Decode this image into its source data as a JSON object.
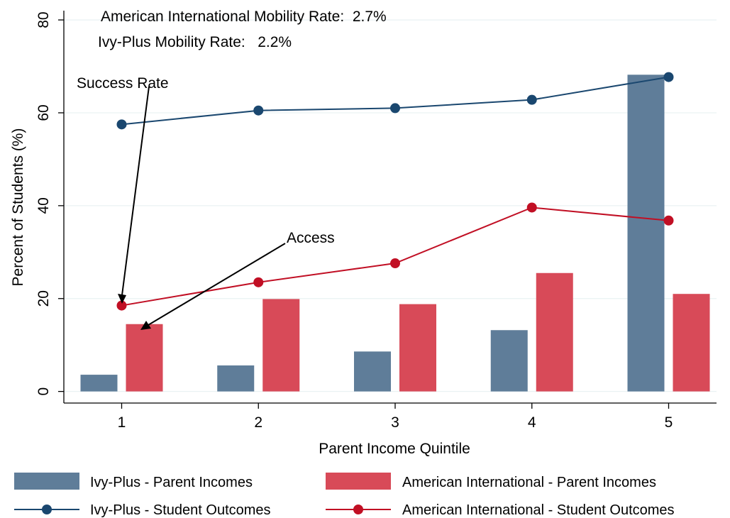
{
  "chart_data": {
    "type": "bar",
    "xlabel": "Parent Income Quintile",
    "ylabel": "Percent of Students (%)",
    "ylim": [
      -2.5,
      82
    ],
    "yticks": [
      0,
      20,
      40,
      60,
      80
    ],
    "categories": [
      "1",
      "2",
      "3",
      "4",
      "5"
    ],
    "grid": true,
    "legend_position": "bottom",
    "annotations": {
      "mobility_ai": "American International Mobility Rate:  2.7%",
      "mobility_ivy": "Ivy-Plus Mobility Rate:   2.2%",
      "success_label": "Success Rate",
      "access_label": "Access"
    },
    "series": [
      {
        "name": "Ivy-Plus - Parent Incomes",
        "kind": "bar",
        "color": "#5f7d99",
        "values": [
          3.6,
          5.6,
          8.6,
          13.2,
          68.2
        ]
      },
      {
        "name": "American International - Parent Incomes",
        "kind": "bar",
        "color": "#d84a58",
        "values": [
          14.5,
          19.9,
          18.8,
          25.5,
          21.0
        ]
      },
      {
        "name": "Ivy-Plus - Student Outcomes",
        "kind": "line",
        "color": "#1a476f",
        "values": [
          57.5,
          60.5,
          61.0,
          62.8,
          67.7
        ]
      },
      {
        "name": "American International - Student Outcomes",
        "kind": "line",
        "color": "#c10f24",
        "values": [
          18.5,
          23.5,
          27.6,
          39.6,
          36.8
        ]
      }
    ]
  }
}
